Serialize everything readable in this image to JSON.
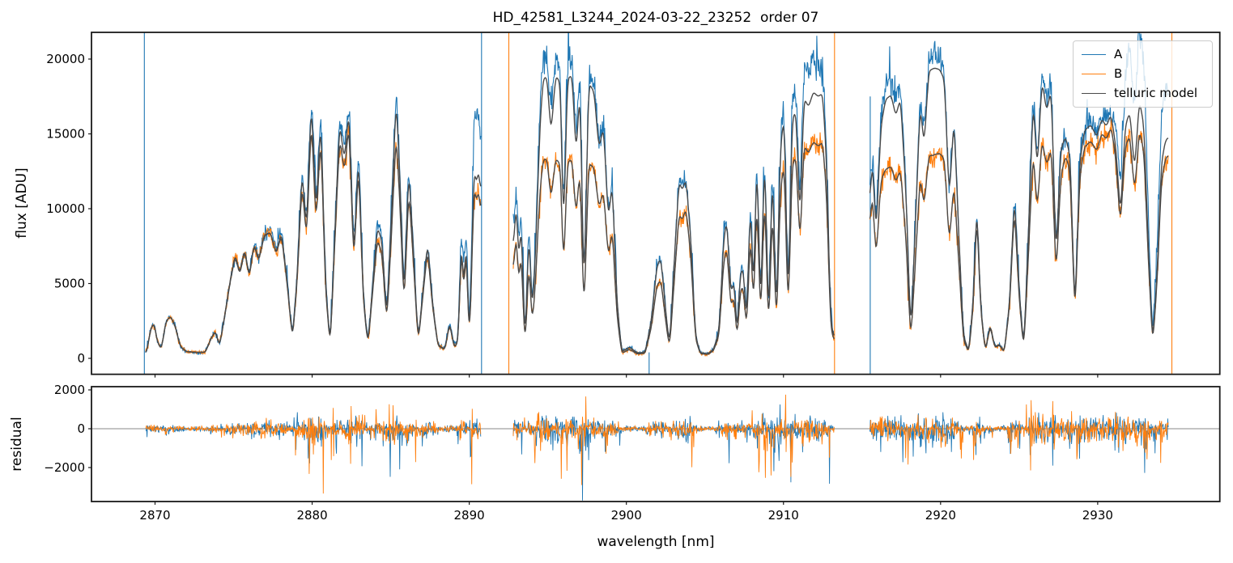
{
  "figure": {
    "background": "#ffffff"
  },
  "chart_data": {
    "type": "line",
    "title": "HD_42581_L3244_2024-03-22_23252  order 07",
    "xlabel": "wavelength [nm]",
    "x_range": [
      2865.95,
      2937.85
    ],
    "x_ticks": [
      2870,
      2880,
      2890,
      2900,
      2910,
      2920,
      2930
    ],
    "panels": {
      "top": {
        "ylabel": "flux [ADU]",
        "ylim": [
          -1065,
          21784
        ],
        "y_ticks": [
          0,
          5000,
          10000,
          15000,
          20000
        ]
      },
      "bottom": {
        "ylabel": "residual",
        "ylim": [
          -3750,
          2167
        ],
        "y_ticks": [
          -2000,
          0,
          2000
        ],
        "zero_line": true,
        "zero_line_color": "#888888"
      }
    },
    "legend": {
      "position": "upper right",
      "entries": [
        "A",
        "B",
        "telluric model"
      ]
    },
    "series": [
      {
        "name": "A",
        "color": "#1f77b4"
      },
      {
        "name": "B",
        "color": "#ff7f0e"
      },
      {
        "name": "telluric model",
        "color": "#4a4a4a"
      }
    ],
    "axis_color": "#1a1a1a",
    "segments": [
      [
        2869.4,
        2890.75
      ],
      [
        2892.8,
        2913.25
      ],
      [
        2915.5,
        2934.5
      ]
    ],
    "telluric_model_anchors": [
      [
        2869.4,
        200
      ],
      [
        2869.55,
        900
      ],
      [
        2869.75,
        2100
      ],
      [
        2869.95,
        2300
      ],
      [
        2870.15,
        1100
      ],
      [
        2870.4,
        600
      ],
      [
        2870.7,
        2500
      ],
      [
        2871.0,
        2800
      ],
      [
        2871.3,
        2100
      ],
      [
        2871.6,
        800
      ],
      [
        2872.0,
        450
      ],
      [
        2872.6,
        400
      ],
      [
        2873.2,
        400
      ],
      [
        2873.6,
        1400
      ],
      [
        2873.85,
        1800
      ],
      [
        2874.1,
        800
      ],
      [
        2874.4,
        2600
      ],
      [
        2874.8,
        5200
      ],
      [
        2875.1,
        6800
      ],
      [
        2875.4,
        5600
      ],
      [
        2875.7,
        7200
      ],
      [
        2876.0,
        5400
      ],
      [
        2876.3,
        7600
      ],
      [
        2876.6,
        6500
      ],
      [
        2876.95,
        8200
      ],
      [
        2877.35,
        8400
      ],
      [
        2877.7,
        7000
      ],
      [
        2878.05,
        8400
      ],
      [
        2878.4,
        5200
      ],
      [
        2878.75,
        1300
      ],
      [
        2879.05,
        5500
      ],
      [
        2879.35,
        12600
      ],
      [
        2879.65,
        8500
      ],
      [
        2879.95,
        17400
      ],
      [
        2880.25,
        9500
      ],
      [
        2880.55,
        16200
      ],
      [
        2880.85,
        5000
      ],
      [
        2881.15,
        800
      ],
      [
        2881.45,
        8500
      ],
      [
        2881.75,
        15800
      ],
      [
        2882.05,
        13200
      ],
      [
        2882.35,
        16700
      ],
      [
        2882.65,
        6500
      ],
      [
        2882.95,
        13800
      ],
      [
        2883.25,
        4200
      ],
      [
        2883.55,
        900
      ],
      [
        2883.85,
        4800
      ],
      [
        2884.15,
        8800
      ],
      [
        2884.45,
        7800
      ],
      [
        2884.75,
        2600
      ],
      [
        2885.05,
        9500
      ],
      [
        2885.35,
        17600
      ],
      [
        2885.6,
        11500
      ],
      [
        2885.85,
        3800
      ],
      [
        2886.15,
        12800
      ],
      [
        2886.45,
        7000
      ],
      [
        2886.75,
        1100
      ],
      [
        2887.05,
        4500
      ],
      [
        2887.35,
        7800
      ],
      [
        2887.65,
        3800
      ],
      [
        2888.0,
        900
      ],
      [
        2888.45,
        600
      ],
      [
        2888.75,
        2400
      ],
      [
        2889.05,
        700
      ],
      [
        2889.3,
        1200
      ],
      [
        2889.5,
        8300
      ],
      [
        2889.65,
        4300
      ],
      [
        2889.8,
        8300
      ],
      [
        2890.0,
        900
      ],
      [
        2890.15,
        6000
      ],
      [
        2890.3,
        13000
      ],
      [
        2890.45,
        11500
      ],
      [
        2890.6,
        12800
      ],
      [
        2890.75,
        10500
      ],
      [
        2892.8,
        7000
      ],
      [
        2893.0,
        10800
      ],
      [
        2893.15,
        6000
      ],
      [
        2893.3,
        9500
      ],
      [
        2893.55,
        700
      ],
      [
        2893.8,
        8800
      ],
      [
        2894.0,
        3000
      ],
      [
        2894.2,
        6500
      ],
      [
        2894.5,
        15500
      ],
      [
        2894.7,
        18700
      ],
      [
        2894.95,
        18800
      ],
      [
        2895.2,
        15000
      ],
      [
        2895.5,
        18900
      ],
      [
        2895.8,
        18400
      ],
      [
        2896.0,
        8000
      ],
      [
        2896.25,
        18700
      ],
      [
        2896.55,
        18900
      ],
      [
        2896.8,
        13500
      ],
      [
        2897.05,
        18300
      ],
      [
        2897.3,
        3800
      ],
      [
        2897.6,
        18400
      ],
      [
        2897.95,
        17800
      ],
      [
        2898.25,
        14000
      ],
      [
        2898.55,
        15500
      ],
      [
        2898.85,
        9200
      ],
      [
        2899.1,
        11800
      ],
      [
        2899.4,
        3800
      ],
      [
        2899.7,
        450
      ],
      [
        2900.2,
        750
      ],
      [
        2900.7,
        350
      ],
      [
        2901.2,
        400
      ],
      [
        2901.6,
        2600
      ],
      [
        2901.95,
        6200
      ],
      [
        2902.2,
        6700
      ],
      [
        2902.5,
        3200
      ],
      [
        2902.75,
        800
      ],
      [
        2903.05,
        6500
      ],
      [
        2903.35,
        11900
      ],
      [
        2903.55,
        11200
      ],
      [
        2903.8,
        12000
      ],
      [
        2904.1,
        8000
      ],
      [
        2904.4,
        1500
      ],
      [
        2904.7,
        350
      ],
      [
        2905.2,
        300
      ],
      [
        2905.55,
        600
      ],
      [
        2905.9,
        1800
      ],
      [
        2906.2,
        8000
      ],
      [
        2906.4,
        9300
      ],
      [
        2906.65,
        4200
      ],
      [
        2906.85,
        5300
      ],
      [
        2907.05,
        1500
      ],
      [
        2907.25,
        5700
      ],
      [
        2907.45,
        6000
      ],
      [
        2907.65,
        2200
      ],
      [
        2907.9,
        10800
      ],
      [
        2908.1,
        3800
      ],
      [
        2908.3,
        14000
      ],
      [
        2908.55,
        2800
      ],
      [
        2908.8,
        14300
      ],
      [
        2909.05,
        1800
      ],
      [
        2909.3,
        13000
      ],
      [
        2909.55,
        2200
      ],
      [
        2909.8,
        14000
      ],
      [
        2910.05,
        16300
      ],
      [
        2910.3,
        3000
      ],
      [
        2910.55,
        16000
      ],
      [
        2910.8,
        16500
      ],
      [
        2911.05,
        9000
      ],
      [
        2911.3,
        17400
      ],
      [
        2911.6,
        16800
      ],
      [
        2911.9,
        17800
      ],
      [
        2912.2,
        17500
      ],
      [
        2912.5,
        17700
      ],
      [
        2912.75,
        13000
      ],
      [
        2913.0,
        2500
      ],
      [
        2913.25,
        1200
      ],
      [
        2915.5,
        10000
      ],
      [
        2915.65,
        13500
      ],
      [
        2915.9,
        8200
      ],
      [
        2916.2,
        15500
      ],
      [
        2916.5,
        17300
      ],
      [
        2916.85,
        17600
      ],
      [
        2917.15,
        16200
      ],
      [
        2917.45,
        17400
      ],
      [
        2917.8,
        11000
      ],
      [
        2918.1,
        1500
      ],
      [
        2918.4,
        9000
      ],
      [
        2918.7,
        17000
      ],
      [
        2918.95,
        14200
      ],
      [
        2919.25,
        19200
      ],
      [
        2919.6,
        19400
      ],
      [
        2919.95,
        19300
      ],
      [
        2920.25,
        18600
      ],
      [
        2920.55,
        10500
      ],
      [
        2920.85,
        16200
      ],
      [
        2921.15,
        8500
      ],
      [
        2921.45,
        1500
      ],
      [
        2921.8,
        450
      ],
      [
        2922.1,
        4200
      ],
      [
        2922.3,
        10600
      ],
      [
        2922.55,
        3500
      ],
      [
        2922.85,
        450
      ],
      [
        2923.15,
        2300
      ],
      [
        2923.45,
        750
      ],
      [
        2923.75,
        950
      ],
      [
        2924.05,
        400
      ],
      [
        2924.4,
        3800
      ],
      [
        2924.7,
        11000
      ],
      [
        2925.0,
        4500
      ],
      [
        2925.3,
        600
      ],
      [
        2925.6,
        8500
      ],
      [
        2925.9,
        17400
      ],
      [
        2926.15,
        12500
      ],
      [
        2926.45,
        18600
      ],
      [
        2926.75,
        16500
      ],
      [
        2927.05,
        18000
      ],
      [
        2927.35,
        6500
      ],
      [
        2927.65,
        14000
      ],
      [
        2927.95,
        14800
      ],
      [
        2928.25,
        13500
      ],
      [
        2928.55,
        2800
      ],
      [
        2928.85,
        13000
      ],
      [
        2929.15,
        15200
      ],
      [
        2929.55,
        15600
      ],
      [
        2929.95,
        14800
      ],
      [
        2930.25,
        16000
      ],
      [
        2930.55,
        15500
      ],
      [
        2930.85,
        16300
      ],
      [
        2931.15,
        14200
      ],
      [
        2931.45,
        9500
      ],
      [
        2931.75,
        15500
      ],
      [
        2932.05,
        16500
      ],
      [
        2932.35,
        12500
      ],
      [
        2932.65,
        17300
      ],
      [
        2932.95,
        15500
      ],
      [
        2933.2,
        8000
      ],
      [
        2933.5,
        900
      ],
      [
        2933.8,
        6000
      ],
      [
        2934.05,
        13000
      ],
      [
        2934.3,
        14500
      ],
      [
        2934.5,
        14800
      ]
    ],
    "b_to_a_ratio_anchors": [
      [
        2869.4,
        1.0
      ],
      [
        2872.0,
        1.0
      ],
      [
        2875.0,
        1.02
      ],
      [
        2877.5,
        1.0
      ],
      [
        2879.5,
        0.93
      ],
      [
        2881.0,
        0.93
      ],
      [
        2883.0,
        0.95
      ],
      [
        2885.4,
        0.86
      ],
      [
        2887.0,
        0.93
      ],
      [
        2889.0,
        0.97
      ],
      [
        2889.6,
        0.95
      ],
      [
        2890.4,
        0.9
      ],
      [
        2892.8,
        0.8
      ],
      [
        2894.7,
        0.71
      ],
      [
        2897.0,
        0.7
      ],
      [
        2899.0,
        0.73
      ],
      [
        2901.0,
        0.85
      ],
      [
        2902.2,
        0.78
      ],
      [
        2903.5,
        0.82
      ],
      [
        2905.0,
        0.9
      ],
      [
        2906.4,
        0.8
      ],
      [
        2908.0,
        0.8
      ],
      [
        2909.8,
        0.8
      ],
      [
        2911.0,
        0.82
      ],
      [
        2912.3,
        0.81
      ],
      [
        2913.2,
        0.85
      ],
      [
        2915.5,
        0.85
      ],
      [
        2916.5,
        0.73
      ],
      [
        2918.7,
        0.72
      ],
      [
        2919.5,
        0.7
      ],
      [
        2920.9,
        0.73
      ],
      [
        2922.3,
        0.94
      ],
      [
        2923.5,
        0.95
      ],
      [
        2924.7,
        0.93
      ],
      [
        2926.0,
        0.79
      ],
      [
        2927.0,
        0.78
      ],
      [
        2928.0,
        0.92
      ],
      [
        2929.5,
        0.93
      ],
      [
        2931.0,
        0.95
      ],
      [
        2932.5,
        0.88
      ],
      [
        2933.5,
        0.9
      ],
      [
        2934.5,
        0.92
      ]
    ],
    "a_boost_anchors": [
      [
        2869.4,
        1.0
      ],
      [
        2879.0,
        1.03
      ],
      [
        2885.4,
        1.06
      ],
      [
        2888.0,
        1.0
      ],
      [
        2890.1,
        1.2
      ],
      [
        2890.4,
        1.35
      ],
      [
        2890.75,
        1.3
      ],
      [
        2892.8,
        1.15
      ],
      [
        2894.0,
        1.08
      ],
      [
        2897.0,
        1.05
      ],
      [
        2899.5,
        1.0
      ],
      [
        2909.5,
        1.05
      ],
      [
        2910.5,
        1.08
      ],
      [
        2911.5,
        1.13
      ],
      [
        2912.5,
        1.1
      ],
      [
        2913.25,
        1.0
      ],
      [
        2915.5,
        1.05
      ],
      [
        2917.0,
        1.06
      ],
      [
        2919.5,
        1.05
      ],
      [
        2921.5,
        1.0
      ],
      [
        2926.0,
        1.05
      ],
      [
        2928.5,
        1.0
      ],
      [
        2930.9,
        1.02
      ],
      [
        2931.3,
        1.15
      ],
      [
        2932.0,
        1.28
      ],
      [
        2933.2,
        1.3
      ],
      [
        2934.5,
        1.22
      ]
    ],
    "vertical_spikes": [
      {
        "x": 2869.32,
        "series": "A",
        "full": true
      },
      {
        "x": 2890.78,
        "series": "A",
        "full": true
      },
      {
        "x": 2892.52,
        "series": "B",
        "full": true
      },
      {
        "x": 2901.45,
        "series": "A",
        "y0": -1065,
        "y1": 400
      },
      {
        "x": 2913.25,
        "series": "B",
        "full": true
      },
      {
        "x": 2915.52,
        "series": "A",
        "y0": -1065,
        "y1": 17500
      },
      {
        "x": 2934.72,
        "series": "B",
        "full": true
      }
    ],
    "noise": {
      "seed": 7,
      "flux_base": 110,
      "flux_frac": 0.045,
      "residual_base": 125,
      "residual_frac": 0.035,
      "edge_spike_down": 4300,
      "edge_spike_up": 2600
    }
  }
}
